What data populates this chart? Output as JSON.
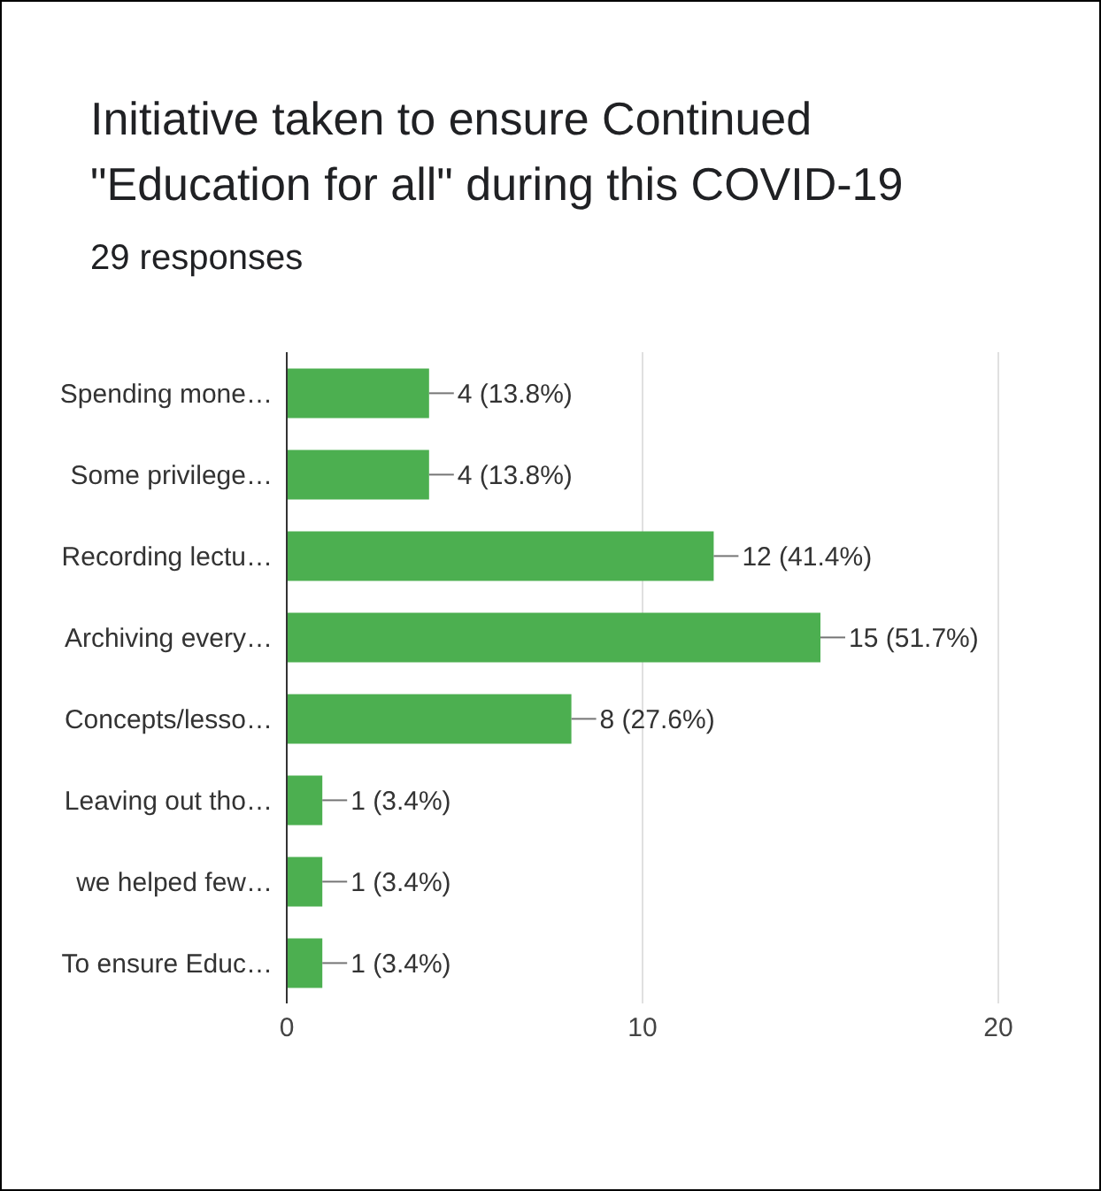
{
  "chart_data": {
    "type": "bar",
    "orientation": "horizontal",
    "title": "Initiative taken to ensure Continued \"Education for all\" during this COVID-19",
    "subtitle": "29 responses",
    "categories": [
      "Spending mone…",
      "Some privilege…",
      "Recording lectu…",
      "Archiving every…",
      "Concepts/lesso…",
      "Leaving out tho…",
      "we helped few…",
      "To ensure Educ…"
    ],
    "values": [
      4,
      4,
      12,
      15,
      8,
      1,
      1,
      1
    ],
    "value_labels": [
      "4 (13.8%)",
      "4 (13.8%)",
      "12 (41.4%)",
      "15 (51.7%)",
      "8 (27.6%)",
      "1 (3.4%)",
      "1 (3.4%)",
      "1 (3.4%)"
    ],
    "color": "#4caf50",
    "xlim": [
      0,
      20
    ],
    "xticks": [
      0,
      10,
      20
    ],
    "grid": "x"
  }
}
